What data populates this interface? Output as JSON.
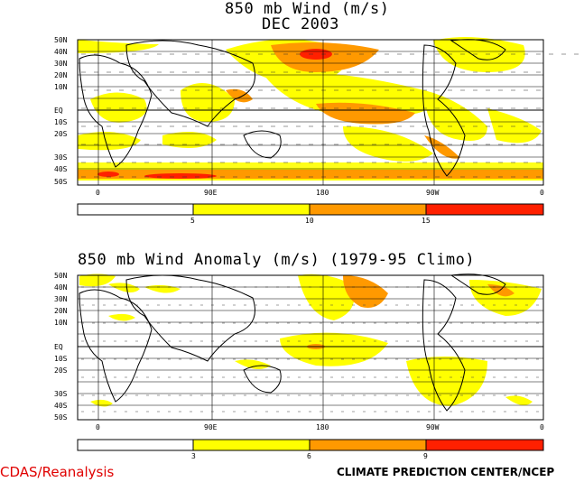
{
  "panel1": {
    "title_line1": "850 mb Wind (m/s)",
    "title_line2": "DEC 2003",
    "lat_labels": [
      "50N",
      "40N",
      "30N",
      "20N",
      "10N",
      "EQ",
      "10S",
      "20S",
      "30S",
      "40S",
      "50S"
    ],
    "lon_labels": [
      "0",
      "90E",
      "180",
      "90W",
      "0"
    ],
    "colorbar": {
      "colors": [
        "#ffffff",
        "#ffff00",
        "#ff9900",
        "#ff2000"
      ],
      "labels": [
        "5",
        "10",
        "15"
      ]
    }
  },
  "panel2": {
    "title": "850 mb Wind Anomaly (m/s) (1979-95 Climo)",
    "lat_labels": [
      "50N",
      "40N",
      "30N",
      "20N",
      "10N",
      "EQ",
      "10S",
      "20S",
      "30S",
      "40S",
      "50S"
    ],
    "lon_labels": [
      "0",
      "90E",
      "180",
      "90W",
      "0"
    ],
    "colorbar": {
      "colors": [
        "#ffffff",
        "#ffff00",
        "#ff9900",
        "#ff2000"
      ],
      "labels": [
        "3",
        "6",
        "9"
      ]
    }
  },
  "footer": {
    "left": "CDAS/Reanalysis",
    "right": "CLIMATE PREDICTION CENTER/NCEP"
  }
}
